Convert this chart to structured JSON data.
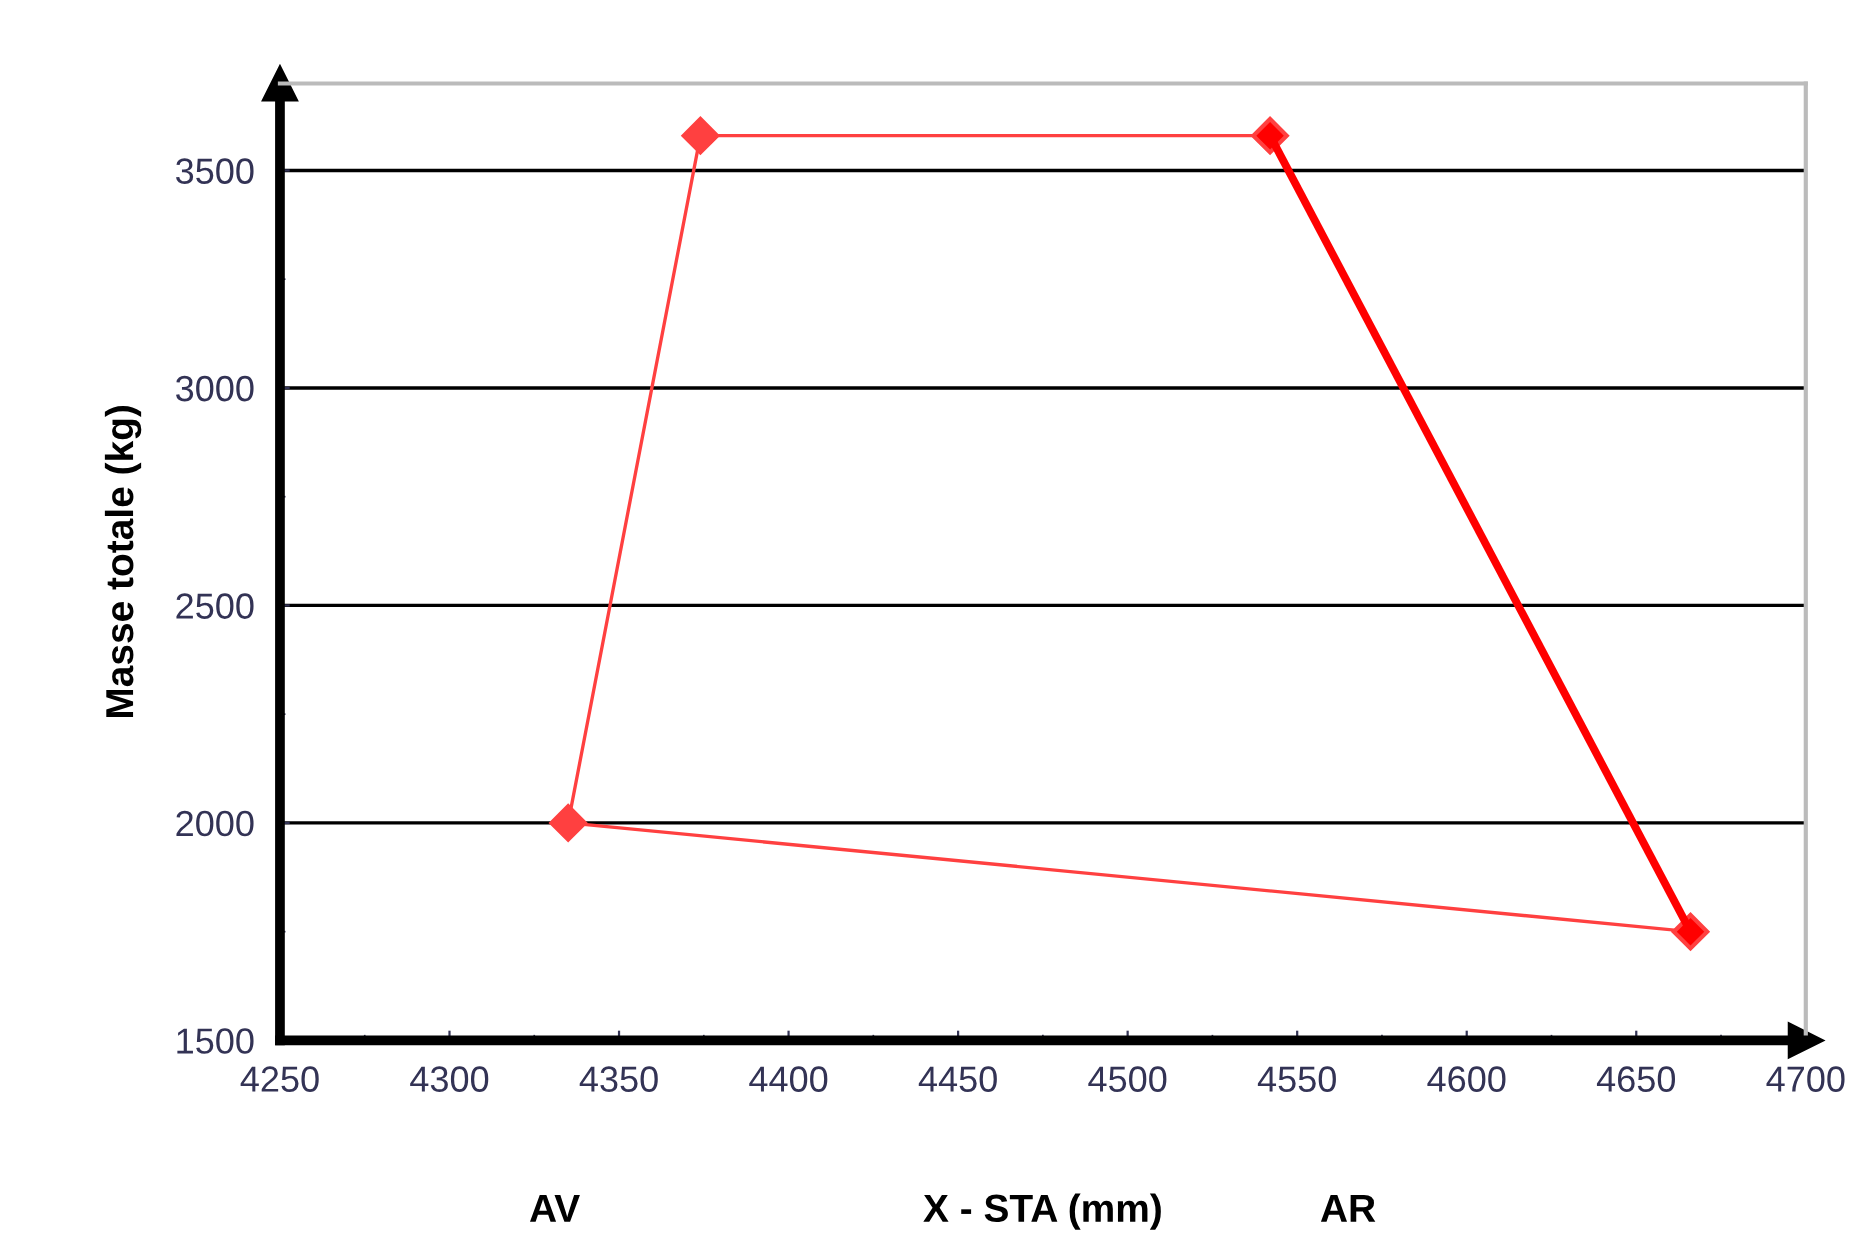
{
  "chart_data": {
    "type": "line",
    "xlabel": "X - STA (mm)",
    "ylabel": "Masse totale (kg)",
    "series": [
      {
        "color": "#ff4040",
        "x": [
          4666,
          4335,
          4374,
          4542
        ],
        "values": [
          1750,
          2000,
          3580,
          3580
        ]
      },
      {
        "color": "#ff0000",
        "x": [
          4542,
          4666
        ],
        "values": [
          3580,
          1750
        ]
      }
    ],
    "annotations": [
      "AV",
      "AR"
    ],
    "xlim": [
      4250,
      4700
    ],
    "xticks": [
      4250,
      4300,
      4350,
      4400,
      4450,
      4500,
      4550,
      4600,
      4650,
      4700
    ],
    "ylim": [
      1500,
      3700
    ],
    "yticks": [
      1500,
      2000,
      2500,
      3000,
      3500
    ],
    "grid": "y",
    "marker": "diamond",
    "line_style": "solid",
    "legend": false
  }
}
